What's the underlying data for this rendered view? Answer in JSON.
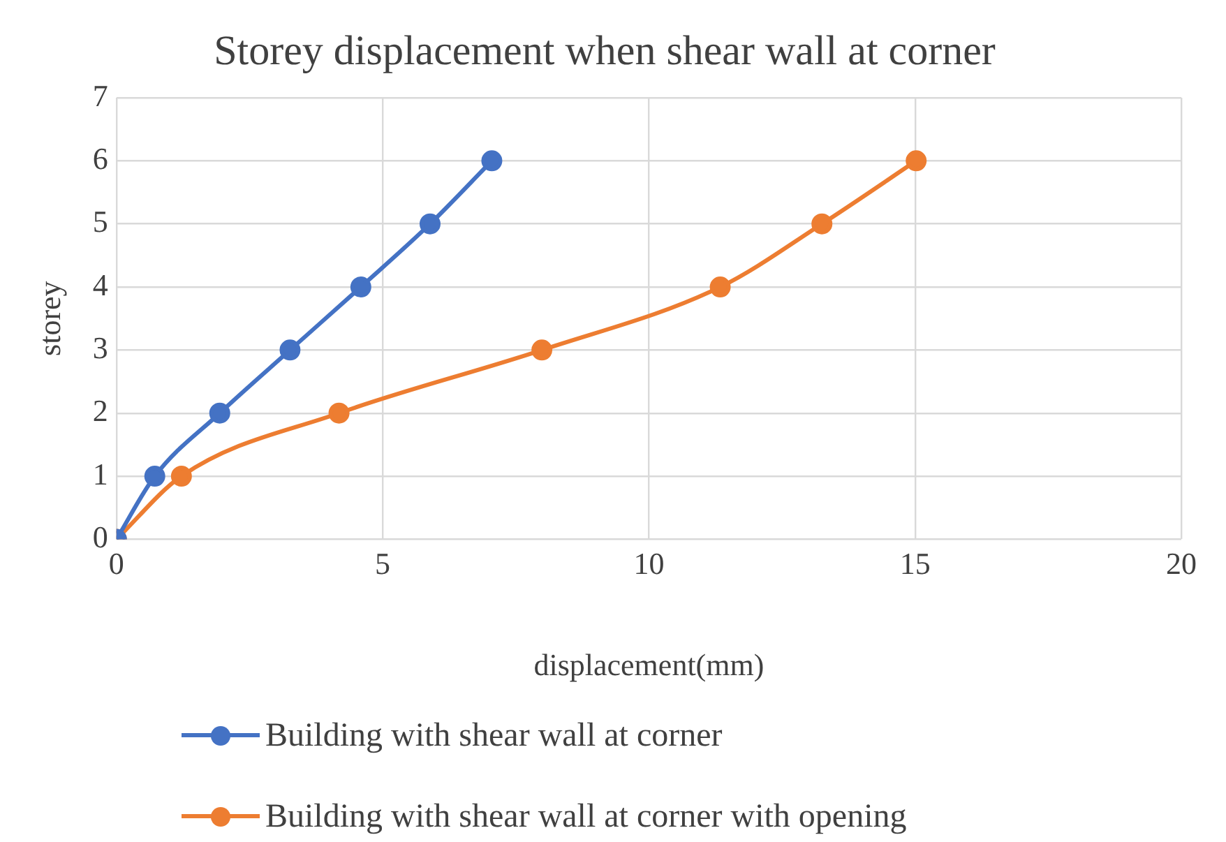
{
  "chart_data": {
    "type": "line",
    "title": "Storey displacement when shear wall at corner",
    "xlabel": "displacement(mm)",
    "ylabel": "storey",
    "xlim": [
      0,
      20
    ],
    "xticks": [
      0,
      5,
      10,
      15,
      20
    ],
    "ylim": [
      0,
      7
    ],
    "yticks": [
      0,
      1,
      2,
      3,
      4,
      5,
      6,
      7
    ],
    "grid": true,
    "legend": "bottom",
    "marker": "circle",
    "series": [
      {
        "name": "Building with shear wall at corner",
        "color": "#4472c4",
        "x": [
          0,
          0.72,
          1.94,
          3.26,
          4.59,
          5.89,
          7.05
        ],
        "values": [
          0,
          1,
          2,
          3,
          4,
          5,
          6
        ]
      },
      {
        "name": "Building with shear wall at corner with opening",
        "color": "#ed7d31",
        "x": [
          0,
          1.22,
          4.18,
          7.99,
          11.34,
          13.25,
          15.02
        ],
        "values": [
          0,
          1,
          2,
          3,
          4,
          5,
          6
        ]
      }
    ]
  }
}
